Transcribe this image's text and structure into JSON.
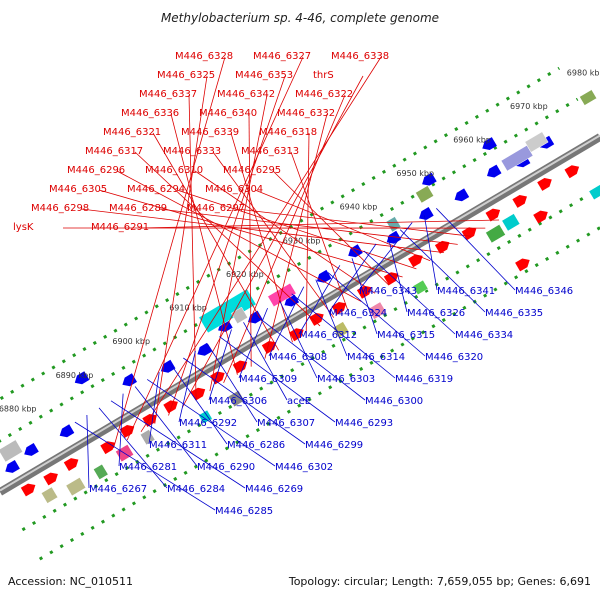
{
  "title": "Methylobacterium sp. 4-46, complete genome",
  "footer": {
    "accession": "Accession: NC_010511",
    "summary": "Topology: circular; Length: 7,659,055 bp; Genes: 6,691"
  },
  "colors": {
    "forward_label": "#dd0000",
    "reverse_label": "#0000cc",
    "forward_gene": "#ff0000",
    "reverse_gene": "#0000ee",
    "backbone": "#888888",
    "dotted_track": "#229922"
  },
  "ticks": [
    "6880 kbp",
    "6890 kbp",
    "6900 kbp",
    "6910 kbp",
    "6920 kbp",
    "6930 kbp",
    "6940 kbp",
    "6950 kbp",
    "6960 kbp",
    "6970 kbp",
    "6980 kbp"
  ],
  "forward_labels": [
    "M446_6328",
    "M446_6327",
    "M446_6338",
    "M446_6325",
    "M446_6353",
    "thrS",
    "M446_6337",
    "M446_6342",
    "M446_6322",
    "M446_6336",
    "M446_6340",
    "M446_6332",
    "M446_6321",
    "M446_6339",
    "M446_6318",
    "M446_6317",
    "M446_6333",
    "M446_6313",
    "M446_6296",
    "M446_6310",
    "M446_6295",
    "M446_6305",
    "M446_6294",
    "M446_6304",
    "M446_6298",
    "M446_6289",
    "M446_6297",
    "lysK",
    "M446_6291"
  ],
  "reverse_labels": [
    "M446_6346",
    "M446_6341",
    "M446_6343",
    "M446_6335",
    "M446_6326",
    "M446_6324",
    "M446_6334",
    "M446_6315",
    "M446_6312",
    "M446_6320",
    "M446_6314",
    "M446_6308",
    "M446_6319",
    "M446_6303",
    "M446_6309",
    "M446_6300",
    "aceE",
    "M446_6306",
    "M446_6293",
    "M446_6307",
    "M446_6292",
    "M446_6299",
    "M446_6286",
    "M446_6311",
    "M446_6302",
    "M446_6290",
    "M446_6281",
    "M446_6269",
    "M446_6284",
    "M446_6267",
    "M446_6285"
  ]
}
